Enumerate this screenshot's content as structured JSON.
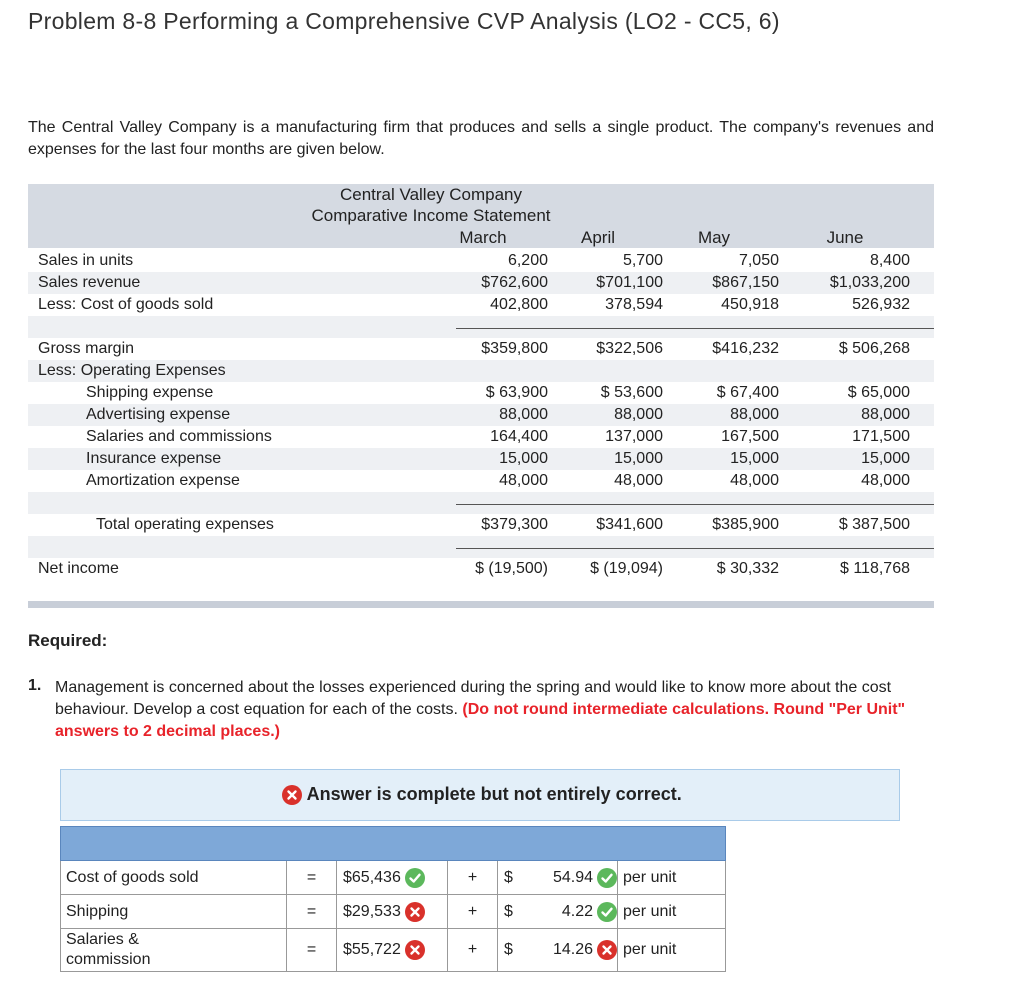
{
  "header": {
    "title": "Problem 8-8 Performing a Comprehensive CVP Analysis (LO2 - CC5, 6)"
  },
  "intro": "The Central Valley Company is a manufacturing firm that produces and sells a single product. The company's revenues and expenses for the last four months are given below.",
  "statement": {
    "company": "Central Valley Company",
    "heading": "Comparative Income Statement",
    "months": [
      "March",
      "April",
      "May",
      "June"
    ],
    "rows": [
      {
        "label": "Sales in units",
        "values": [
          "6,200",
          "5,700",
          "7,050",
          "8,400"
        ]
      },
      {
        "label": "Sales revenue",
        "values": [
          "$762,600",
          "$701,100",
          "$867,150",
          "$1,033,200"
        ]
      },
      {
        "label": "Less: Cost of goods sold",
        "values": [
          "402,800",
          "378,594",
          "450,918",
          "526,932"
        ]
      },
      {
        "label": "Gross margin",
        "values": [
          "$359,800",
          "$322,506",
          "$416,232",
          "$ 506,268"
        ],
        "total": true
      },
      {
        "label": "Less: Operating Expenses"
      },
      {
        "label": "Shipping expense",
        "values": [
          "$ 63,900",
          "$ 53,600",
          "$ 67,400",
          "$ 65,000"
        ],
        "indent": 1
      },
      {
        "label": "Advertising expense",
        "values": [
          "88,000",
          "88,000",
          "88,000",
          "88,000"
        ],
        "indent": 1
      },
      {
        "label": "Salaries and commissions",
        "values": [
          "164,400",
          "137,000",
          "167,500",
          "171,500"
        ],
        "indent": 1
      },
      {
        "label": "Insurance expense",
        "values": [
          "15,000",
          "15,000",
          "15,000",
          "15,000"
        ],
        "indent": 1
      },
      {
        "label": "Amortization expense",
        "values": [
          "48,000",
          "48,000",
          "48,000",
          "48,000"
        ],
        "indent": 1
      },
      {
        "label": "Total operating expenses",
        "values": [
          "$379,300",
          "$341,600",
          "$385,900",
          "$ 387,500"
        ],
        "total": true,
        "indent": 2
      },
      {
        "label": "Net income",
        "values": [
          "$ (19,500)",
          "$ (19,094)",
          "$ 30,332",
          "$ 118,768"
        ],
        "total": true
      }
    ]
  },
  "required": {
    "heading": "Required:",
    "number": "1.",
    "text": "Management is concerned about the losses experienced during the spring and would like to know more about the cost behaviour. Develop a cost equation for each of the costs.",
    "instruction": "(Do not round intermediate calculations. Round \"Per Unit\" answers to 2 decimal places.)"
  },
  "banner": {
    "text": "Answer is complete but not entirely correct.",
    "status": "incorrect"
  },
  "answers": [
    {
      "label": "Cost of goods sold",
      "eq": "=",
      "fixed": "$65,436",
      "fixed_status": "correct",
      "plus": "+",
      "currency": "$",
      "variable": "54.94",
      "variable_status": "correct",
      "unit": "per unit"
    },
    {
      "label": "Shipping",
      "eq": "=",
      "fixed": "$29,533",
      "fixed_status": "incorrect",
      "plus": "+",
      "currency": "$",
      "variable": "4.22",
      "variable_status": "correct",
      "unit": "per unit"
    },
    {
      "label": "Salaries & commission",
      "eq": "=",
      "fixed": "$55,722",
      "fixed_status": "incorrect",
      "plus": "+",
      "currency": "$",
      "variable": "14.26",
      "variable_status": "incorrect",
      "unit": "per unit"
    }
  ]
}
